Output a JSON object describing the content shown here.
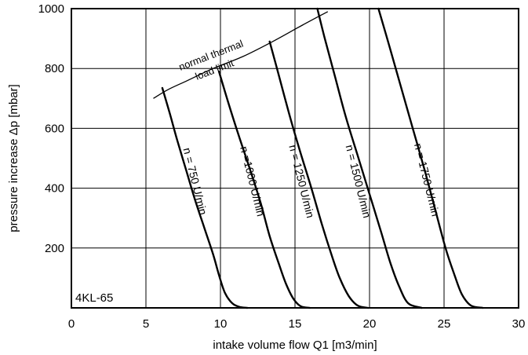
{
  "chart_data": {
    "type": "line",
    "title": "",
    "xlabel": "intake volume flow Q1 [m3/min]",
    "ylabel": "pressure increase Δp [mbar]",
    "xlim": [
      0,
      30
    ],
    "ylim": [
      0,
      1000
    ],
    "x_ticks": [
      "0",
      "5",
      "10",
      "15",
      "20",
      "25",
      "30"
    ],
    "y_ticks": [
      "200",
      "400",
      "600",
      "800",
      "1000"
    ],
    "grid": true,
    "legend": "none",
    "model_label": "4KL-65",
    "thermal_limit": {
      "label_line1": "normal thermal",
      "label_line2": "load limit",
      "x": [
        5.5,
        6.5,
        7.8,
        9.5,
        11.5,
        13.5,
        15.5,
        17.2
      ],
      "y": [
        700,
        730,
        760,
        800,
        840,
        890,
        945,
        990
      ]
    },
    "series": [
      {
        "name": "n = 750 U/min",
        "x": [
          6.1,
          6.6,
          7.1,
          7.7,
          8.3,
          8.9,
          9.5,
          9.9,
          10.3,
          10.8,
          11.3,
          11.8
        ],
        "y": [
          735,
          650,
          560,
          460,
          360,
          270,
          180,
          110,
          50,
          15,
          3,
          0
        ]
      },
      {
        "name": "n =1000 U/min",
        "x": [
          9.9,
          10.5,
          11.2,
          12.0,
          12.7,
          13.3,
          13.9,
          14.4,
          14.9,
          15.4,
          16.0
        ],
        "y": [
          790,
          690,
          580,
          460,
          350,
          240,
          150,
          80,
          30,
          5,
          0
        ]
      },
      {
        "name": "n = 1250 U/min",
        "x": [
          13.3,
          13.9,
          14.6,
          15.3,
          16.1,
          16.8,
          17.5,
          18.0,
          18.6,
          19.2,
          19.9
        ],
        "y": [
          890,
          780,
          650,
          530,
          400,
          280,
          170,
          100,
          40,
          8,
          0
        ]
      },
      {
        "name": "n = 1500 U/min",
        "x": [
          16.5,
          17.0,
          17.7,
          18.4,
          19.2,
          20.0,
          20.8,
          21.4,
          22.0,
          22.6,
          23.5
        ],
        "y": [
          1000,
          900,
          770,
          640,
          510,
          380,
          250,
          150,
          70,
          15,
          0
        ]
      },
      {
        "name": "n = 1750 U/min",
        "x": [
          20.6,
          21.3,
          22.1,
          22.9,
          23.7,
          24.4,
          25.1,
          25.7,
          26.2,
          26.8,
          27.6
        ],
        "y": [
          1000,
          880,
          740,
          600,
          460,
          330,
          200,
          110,
          45,
          8,
          0
        ]
      }
    ]
  }
}
